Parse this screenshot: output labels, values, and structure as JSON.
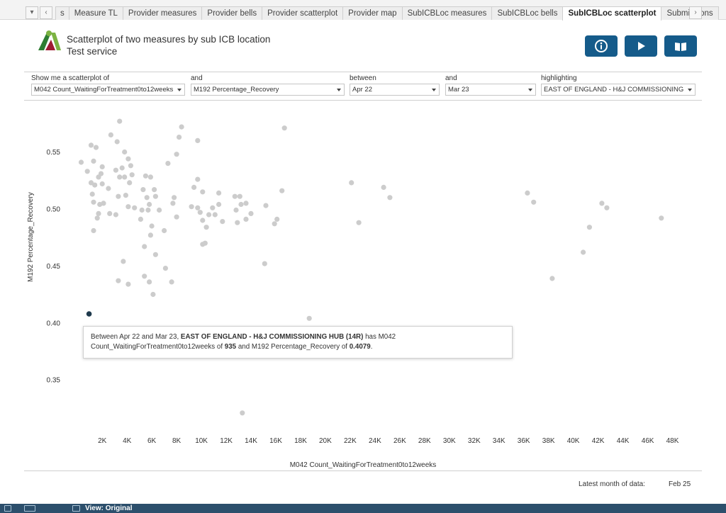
{
  "tabs": [
    {
      "label": "s",
      "active": false
    },
    {
      "label": "Measure TL",
      "active": false
    },
    {
      "label": "Provider measures",
      "active": false
    },
    {
      "label": "Provider bells",
      "active": false
    },
    {
      "label": "Provider scatterplot",
      "active": false
    },
    {
      "label": "Provider map",
      "active": false
    },
    {
      "label": "SubICBLoc measures",
      "active": false
    },
    {
      "label": "SubICBLoc bells",
      "active": false
    },
    {
      "label": "SubICBLoc scatterplot",
      "active": true
    },
    {
      "label": "Submissions",
      "active": false
    }
  ],
  "header": {
    "title_line1": "Scatterplot of two measures by sub ICB location",
    "title_line2": "Test service",
    "buttons": [
      {
        "icon": "info-icon"
      },
      {
        "icon": "play-icon"
      },
      {
        "icon": "book-icon"
      }
    ]
  },
  "filters": [
    {
      "label": "Show me a scatterplot of",
      "value": "M042 Count_WaitingForTreatment0to12weeks"
    },
    {
      "label": "and",
      "value": "M192 Percentage_Recovery"
    },
    {
      "label": "between",
      "value": "Apr 22"
    },
    {
      "label": "and",
      "value": "Mar 23"
    },
    {
      "label": "highlighting",
      "value": "EAST OF ENGLAND - H&J COMMISSIONING ..."
    }
  ],
  "tooltip": {
    "t1": "Between Apr 22 and Mar 23, ",
    "t2": "EAST OF ENGLAND - H&J COMMISSIONING HUB",
    "t3": " (14R)",
    "t4": " has M042",
    "t5": "Count_WaitingForTreatment0to12weeks of ",
    "t6": "935",
    "t7": " and M192 Percentage_Recovery of ",
    "t8": "0.4079",
    "t9": "."
  },
  "footer": {
    "latest_label": "Latest month of data:",
    "latest_value": "Feb 25",
    "view_label": "View: Original"
  },
  "colors": {
    "point": "#cccccc",
    "highlight": "#1f3a4d",
    "button": "#155b8a"
  },
  "chart_data": {
    "type": "scatter",
    "xlabel": "M042 Count_WaitingForTreatment0to12weeks",
    "ylabel": "M192 Percentage_Recovery",
    "x_ticks": [
      "2K",
      "4K",
      "6K",
      "8K",
      "10K",
      "12K",
      "14K",
      "16K",
      "18K",
      "20K",
      "22K",
      "24K",
      "26K",
      "28K",
      "30K",
      "32K",
      "34K",
      "36K",
      "38K",
      "40K",
      "42K",
      "44K",
      "46K",
      "48K"
    ],
    "y_ticks": [
      "0.35",
      "0.40",
      "0.45",
      "0.50",
      "0.55"
    ],
    "xlim": [
      -1100,
      49800
    ],
    "ylim": [
      0.3072,
      0.587
    ],
    "grid": false,
    "highlight": {
      "x": 935,
      "y": 0.4079
    },
    "points": [
      [
        300,
        0.541
      ],
      [
        800,
        0.533
      ],
      [
        1100,
        0.556
      ],
      [
        1500,
        0.554
      ],
      [
        1300,
        0.542
      ],
      [
        1900,
        0.531
      ],
      [
        2000,
        0.537
      ],
      [
        1700,
        0.528
      ],
      [
        1100,
        0.523
      ],
      [
        1400,
        0.521
      ],
      [
        1200,
        0.513
      ],
      [
        2000,
        0.522
      ],
      [
        1300,
        0.506
      ],
      [
        1800,
        0.504
      ],
      [
        2100,
        0.505
      ],
      [
        1700,
        0.496
      ],
      [
        1600,
        0.492
      ],
      [
        1300,
        0.481
      ],
      [
        2600,
        0.496
      ],
      [
        3100,
        0.495
      ],
      [
        2500,
        0.518
      ],
      [
        3300,
        0.511
      ],
      [
        2700,
        0.565
      ],
      [
        3200,
        0.559
      ],
      [
        3400,
        0.577
      ],
      [
        3100,
        0.534
      ],
      [
        3600,
        0.536
      ],
      [
        3400,
        0.528
      ],
      [
        3800,
        0.528
      ],
      [
        3800,
        0.55
      ],
      [
        4100,
        0.544
      ],
      [
        4300,
        0.538
      ],
      [
        4200,
        0.523
      ],
      [
        4400,
        0.53
      ],
      [
        3900,
        0.512
      ],
      [
        4100,
        0.502
      ],
      [
        4600,
        0.501
      ],
      [
        5300,
        0.517
      ],
      [
        5500,
        0.529
      ],
      [
        5900,
        0.528
      ],
      [
        5600,
        0.51
      ],
      [
        6200,
        0.517
      ],
      [
        6300,
        0.511
      ],
      [
        5800,
        0.504
      ],
      [
        5700,
        0.499
      ],
      [
        5200,
        0.499
      ],
      [
        5100,
        0.491
      ],
      [
        6600,
        0.499
      ],
      [
        6000,
        0.485
      ],
      [
        5900,
        0.477
      ],
      [
        5400,
        0.467
      ],
      [
        6300,
        0.46
      ],
      [
        7000,
        0.481
      ],
      [
        7300,
        0.54
      ],
      [
        7800,
        0.51
      ],
      [
        7700,
        0.505
      ],
      [
        8000,
        0.493
      ],
      [
        8000,
        0.548
      ],
      [
        8200,
        0.563
      ],
      [
        8400,
        0.572
      ],
      [
        3300,
        0.437
      ],
      [
        3700,
        0.454
      ],
      [
        4100,
        0.434
      ],
      [
        5400,
        0.441
      ],
      [
        5800,
        0.436
      ],
      [
        6100,
        0.425
      ],
      [
        7100,
        0.448
      ],
      [
        7600,
        0.436
      ],
      [
        9200,
        0.502
      ],
      [
        9700,
        0.501
      ],
      [
        9400,
        0.519
      ],
      [
        9700,
        0.526
      ],
      [
        9700,
        0.56
      ],
      [
        10100,
        0.515
      ],
      [
        9900,
        0.497
      ],
      [
        10100,
        0.49
      ],
      [
        10400,
        0.484
      ],
      [
        10100,
        0.469
      ],
      [
        10300,
        0.47
      ],
      [
        10600,
        0.495
      ],
      [
        10900,
        0.501
      ],
      [
        11100,
        0.495
      ],
      [
        11400,
        0.504
      ],
      [
        11400,
        0.514
      ],
      [
        11700,
        0.489
      ],
      [
        12700,
        0.511
      ],
      [
        13100,
        0.511
      ],
      [
        13200,
        0.504
      ],
      [
        12800,
        0.499
      ],
      [
        12900,
        0.488
      ],
      [
        13600,
        0.505
      ],
      [
        13600,
        0.491
      ],
      [
        14000,
        0.496
      ],
      [
        15200,
        0.503
      ],
      [
        15900,
        0.487
      ],
      [
        16100,
        0.491
      ],
      [
        16500,
        0.516
      ],
      [
        16700,
        0.571
      ],
      [
        15100,
        0.452
      ],
      [
        14700,
        0.394
      ],
      [
        13300,
        0.321
      ],
      [
        18700,
        0.404
      ],
      [
        22100,
        0.523
      ],
      [
        22700,
        0.488
      ],
      [
        24700,
        0.519
      ],
      [
        25200,
        0.51
      ],
      [
        36300,
        0.514
      ],
      [
        36800,
        0.506
      ],
      [
        38300,
        0.439
      ],
      [
        40800,
        0.462
      ],
      [
        41300,
        0.484
      ],
      [
        42300,
        0.505
      ],
      [
        42700,
        0.501
      ],
      [
        47100,
        0.492
      ]
    ]
  }
}
